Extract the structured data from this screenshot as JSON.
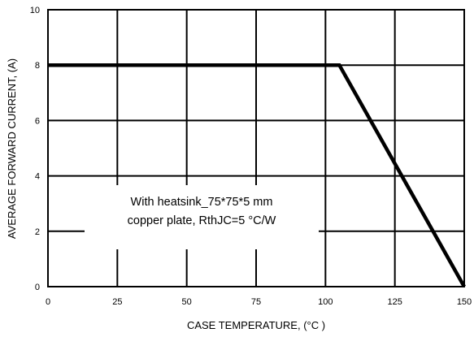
{
  "chart_data": {
    "type": "line",
    "xlabel": "CASE TEMPERATURE, (°C )",
    "ylabel": "AVERAGE FORWARD CURRENT, (A)",
    "xlim": [
      0,
      150
    ],
    "ylim": [
      0,
      10
    ],
    "xticks": [
      "0",
      "25",
      "50",
      "75",
      "100",
      "125",
      "150"
    ],
    "yticks": [
      "0",
      "2",
      "4",
      "6",
      "8",
      "10"
    ],
    "grid": true,
    "annotation": [
      "With heatsink_75*75*5 mm",
      "copper plate, RthJC=5 °C/W"
    ],
    "series": [
      {
        "x": [
          0,
          105,
          150
        ],
        "y": [
          8,
          8,
          0
        ]
      }
    ]
  }
}
